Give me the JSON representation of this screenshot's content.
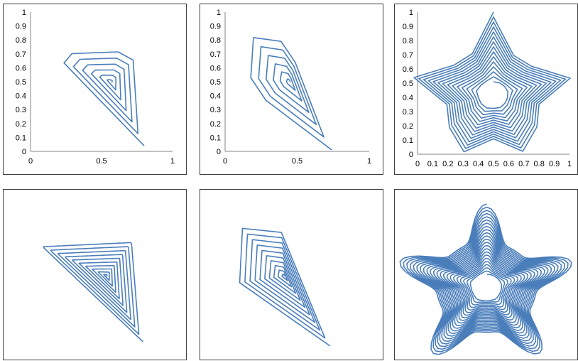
{
  "series_color": "#4A7EBB",
  "chart_data": [
    {
      "type": "line",
      "name": "top-left",
      "shape": "triangle-spiral",
      "vertices": [
        [
          0.8,
          0.04
        ],
        [
          0.15,
          0.71
        ],
        [
          0.74,
          0.75
        ]
      ],
      "center": [
        0.57,
        0.5
      ],
      "revolutions": 6,
      "segmented": true,
      "xlim": [
        0,
        1
      ],
      "ylim": [
        0,
        1
      ],
      "x_ticks": [
        "0",
        "0.5",
        "1"
      ],
      "y_ticks": [
        "0",
        "0.1",
        "0.2",
        "0.3",
        "0.4",
        "0.5",
        "0.6",
        "0.7",
        "0.8",
        "0.9",
        "1"
      ]
    },
    {
      "type": "line",
      "name": "top-middle",
      "shape": "twin-peak-spiral",
      "vertices": [
        [
          0.74,
          0.01
        ],
        [
          0.16,
          0.45
        ],
        [
          0.17,
          0.85
        ],
        [
          0.43,
          0.83
        ]
      ],
      "center": [
        0.45,
        0.5
      ],
      "revolutions": 6,
      "segmented": true,
      "xlim": [
        0,
        1
      ],
      "ylim": [
        0,
        1
      ],
      "x_ticks": [
        "0",
        "0.5",
        "1"
      ],
      "y_ticks": [
        "0",
        "0.1",
        "0.2",
        "0.3",
        "0.4",
        "0.5",
        "0.6",
        "0.7",
        "0.8",
        "0.9",
        "1"
      ]
    },
    {
      "type": "line",
      "name": "top-right",
      "shape": "star-spiral",
      "center": [
        0.5,
        0.42
      ],
      "outer_radius": 0.58,
      "inner_radius": 0.09,
      "points": 5,
      "revolutions": 14,
      "segmented": true,
      "xlim": [
        0,
        1
      ],
      "ylim": [
        0,
        1
      ],
      "x_ticks": [
        "0",
        "0.1",
        "0.2",
        "0.3",
        "0.4",
        "0.5",
        "0.6",
        "0.7",
        "0.8",
        "0.9",
        "1"
      ],
      "y_ticks": [
        "0",
        "0.1",
        "0.2",
        "0.3",
        "0.4",
        "0.5",
        "0.6",
        "0.7",
        "0.8",
        "0.9",
        "1"
      ]
    },
    {
      "type": "line",
      "name": "bottom-left",
      "shape": "triangle-spiral",
      "vertices": [
        [
          0.8,
          0.04
        ],
        [
          0.15,
          0.71
        ],
        [
          0.74,
          0.75
        ]
      ],
      "center": [
        0.57,
        0.5
      ],
      "revolutions": 10,
      "segmented": false,
      "xlim": [
        0,
        1
      ],
      "ylim": [
        0,
        1
      ]
    },
    {
      "type": "line",
      "name": "bottom-middle",
      "shape": "twin-peak-spiral",
      "vertices": [
        [
          0.74,
          0.01
        ],
        [
          0.16,
          0.45
        ],
        [
          0.17,
          0.85
        ],
        [
          0.43,
          0.83
        ]
      ],
      "center": [
        0.45,
        0.5
      ],
      "revolutions": 10,
      "segmented": false,
      "xlim": [
        0,
        1
      ],
      "ylim": [
        0,
        1
      ]
    },
    {
      "type": "line",
      "name": "bottom-right",
      "shape": "star-spiral",
      "center": [
        0.5,
        0.42
      ],
      "outer_radius": 0.58,
      "inner_radius": 0.09,
      "points": 5,
      "revolutions": 22,
      "segmented": false,
      "xlim": [
        0,
        1
      ],
      "ylim": [
        0,
        1
      ]
    }
  ]
}
